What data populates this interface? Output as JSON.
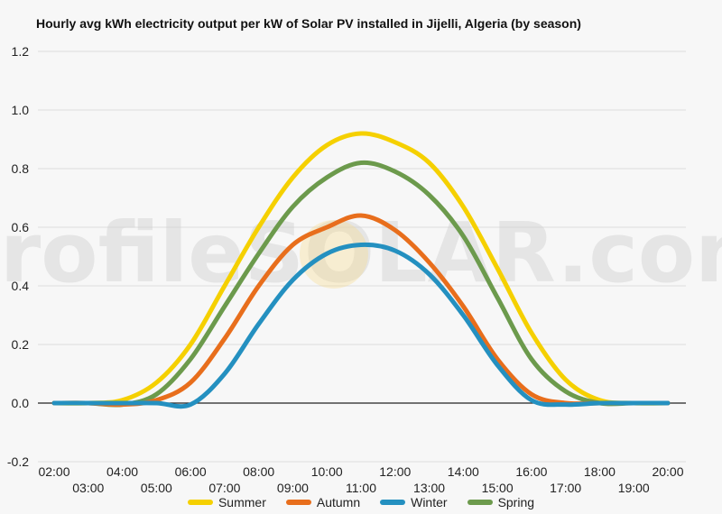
{
  "title": "Hourly avg kWh electricity output per kW of Solar PV installed in Jijelli, Algeria (by season)",
  "watermark": "profileSOLAR.com",
  "chart_data": {
    "type": "line",
    "title": "Hourly avg kWh electricity output per kW of Solar PV installed in Jijelli, Algeria (by season)",
    "x": [
      "02:00",
      "03:00",
      "04:00",
      "05:00",
      "06:00",
      "07:00",
      "08:00",
      "09:00",
      "10:00",
      "11:00",
      "12:00",
      "13:00",
      "14:00",
      "15:00",
      "16:00",
      "17:00",
      "18:00",
      "19:00",
      "20:00"
    ],
    "ylim": [
      -0.2,
      1.2
    ],
    "yticks": [
      "1.2",
      "1.0",
      "0.8",
      "0.6",
      "0.4",
      "0.2",
      "0.0",
      "-0.2"
    ],
    "yticks_values": [
      1.2,
      1.0,
      0.8,
      0.6,
      0.4,
      0.2,
      0.0,
      -0.2
    ],
    "grid": true,
    "legend": "bottom",
    "series": [
      {
        "name": "Summer",
        "color": "#f5d000",
        "values": [
          0,
          0,
          0.01,
          0.07,
          0.2,
          0.4,
          0.6,
          0.77,
          0.88,
          0.92,
          0.89,
          0.82,
          0.67,
          0.46,
          0.24,
          0.08,
          0.01,
          0,
          0
        ]
      },
      {
        "name": "Autumn",
        "color": "#e86e1c",
        "values": [
          0,
          0,
          -0.005,
          0.01,
          0.07,
          0.22,
          0.4,
          0.54,
          0.6,
          0.64,
          0.59,
          0.48,
          0.33,
          0.15,
          0.03,
          0,
          0,
          0,
          0
        ]
      },
      {
        "name": "Winter",
        "color": "#2490c0",
        "values": [
          0,
          0,
          0,
          0,
          -0.005,
          0.1,
          0.27,
          0.42,
          0.51,
          0.54,
          0.52,
          0.44,
          0.3,
          0.13,
          0.01,
          -0.005,
          0,
          0,
          0
        ]
      },
      {
        "name": "Spring",
        "color": "#6c9a4c",
        "values": [
          0,
          0,
          -0.005,
          0.03,
          0.15,
          0.33,
          0.51,
          0.67,
          0.77,
          0.82,
          0.79,
          0.71,
          0.57,
          0.36,
          0.15,
          0.04,
          0,
          0,
          0
        ]
      }
    ]
  }
}
